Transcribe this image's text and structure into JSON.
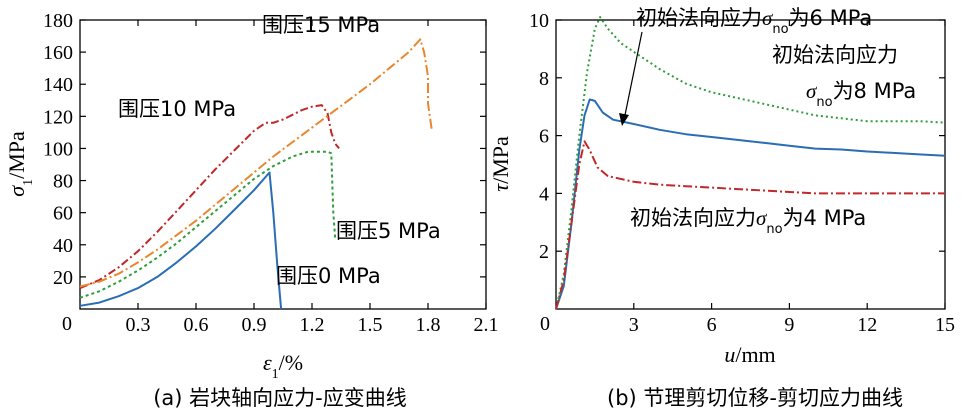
{
  "chart_data": [
    {
      "type": "line",
      "caption": "(a) 岩块轴向应力-应变曲线",
      "xlabel_symbol": "ε",
      "xlabel_sub": "1",
      "xlabel_unit": "/%",
      "ylabel_symbol": "σ",
      "ylabel_sub": "1",
      "ylabel_unit": "/MPa",
      "xlim": [
        0,
        2.1
      ],
      "ylim": [
        0,
        180
      ],
      "xticks": [
        0.3,
        0.6,
        0.9,
        1.2,
        1.5,
        1.8,
        2.1
      ],
      "xtick_labels": [
        "0.3",
        "0.6",
        "0.9",
        "1.2",
        "1.5",
        "1.8",
        "2.1"
      ],
      "yticks": [
        20,
        40,
        60,
        80,
        100,
        120,
        140,
        160,
        180
      ],
      "ytick_labels": [
        "20",
        "40",
        "60",
        "80",
        "100",
        "120",
        "140",
        "160",
        "180"
      ],
      "origin_label": "0",
      "series": [
        {
          "name": "围压0 MPa",
          "color": "#2a6db5",
          "dash": "",
          "points": [
            [
              0,
              2
            ],
            [
              0.1,
              4
            ],
            [
              0.2,
              8
            ],
            [
              0.3,
              13
            ],
            [
              0.4,
              20
            ],
            [
              0.5,
              29
            ],
            [
              0.6,
              39
            ],
            [
              0.7,
              50
            ],
            [
              0.8,
              62
            ],
            [
              0.9,
              74
            ],
            [
              0.98,
              85
            ],
            [
              1.0,
              60
            ],
            [
              1.02,
              28
            ],
            [
              1.04,
              0
            ]
          ]
        },
        {
          "name": "围压5 MPa",
          "color": "#2e9e3a",
          "dash": "3,3",
          "points": [
            [
              0,
              7
            ],
            [
              0.1,
              11
            ],
            [
              0.2,
              17
            ],
            [
              0.3,
              24
            ],
            [
              0.4,
              32
            ],
            [
              0.5,
              41
            ],
            [
              0.6,
              51
            ],
            [
              0.7,
              61
            ],
            [
              0.8,
              71
            ],
            [
              0.9,
              81
            ],
            [
              1.0,
              89
            ],
            [
              1.1,
              95
            ],
            [
              1.18,
              98
            ],
            [
              1.24,
              98
            ],
            [
              1.28,
              98
            ],
            [
              1.3,
              97
            ],
            [
              1.31,
              60
            ],
            [
              1.32,
              44
            ]
          ]
        },
        {
          "name": "围压10 MPa",
          "color": "#c0282a",
          "dash": "8,3,2,3",
          "points": [
            [
              0,
              13
            ],
            [
              0.1,
              18
            ],
            [
              0.2,
              26
            ],
            [
              0.3,
              36
            ],
            [
              0.4,
              48
            ],
            [
              0.5,
              61
            ],
            [
              0.6,
              74
            ],
            [
              0.7,
              87
            ],
            [
              0.8,
              99
            ],
            [
              0.9,
              111
            ],
            [
              0.96,
              116
            ],
            [
              1.0,
              116
            ],
            [
              1.05,
              118
            ],
            [
              1.1,
              121
            ],
            [
              1.15,
              124
            ],
            [
              1.2,
              126
            ],
            [
              1.25,
              127
            ],
            [
              1.28,
              122
            ],
            [
              1.3,
              110
            ],
            [
              1.32,
              103
            ],
            [
              1.34,
              100
            ]
          ]
        },
        {
          "name": "围压15 MPa",
          "color": "#e8872e",
          "dash": "10,3,2,3",
          "points": [
            [
              0,
              14
            ],
            [
              0.1,
              17
            ],
            [
              0.2,
              22
            ],
            [
              0.3,
              29
            ],
            [
              0.4,
              37
            ],
            [
              0.5,
              46
            ],
            [
              0.6,
              55
            ],
            [
              0.7,
              65
            ],
            [
              0.8,
              75
            ],
            [
              0.9,
              85
            ],
            [
              1.0,
              95
            ],
            [
              1.1,
              104
            ],
            [
              1.2,
              113
            ],
            [
              1.3,
              122
            ],
            [
              1.4,
              131
            ],
            [
              1.5,
              140
            ],
            [
              1.6,
              150
            ],
            [
              1.7,
              160
            ],
            [
              1.76,
              168
            ],
            [
              1.78,
              160
            ],
            [
              1.8,
              145
            ],
            [
              1.8,
              128
            ],
            [
              1.82,
              111
            ]
          ]
        }
      ],
      "annotations": [
        {
          "text": "围压15 MPa",
          "series": 3
        },
        {
          "text": "围压10 MPa",
          "series": 2
        },
        {
          "text": "围压5 MPa",
          "series": 1
        },
        {
          "text": "围压0 MPa",
          "series": 0
        }
      ]
    },
    {
      "type": "line",
      "caption": "(b) 节理剪切位移-剪切应力曲线",
      "xlabel_symbol": "u",
      "xlabel_unit": "/mm",
      "ylabel_symbol": "τ",
      "ylabel_unit": "/MPa",
      "xlim": [
        0,
        15
      ],
      "ylim": [
        0,
        10
      ],
      "xticks": [
        3,
        6,
        9,
        12,
        15
      ],
      "xtick_labels": [
        "3",
        "6",
        "9",
        "12",
        "15"
      ],
      "yticks": [
        2,
        4,
        6,
        8,
        10
      ],
      "ytick_labels": [
        "2",
        "4",
        "6",
        "8",
        "10"
      ],
      "origin_label": "0",
      "series": [
        {
          "name": "初始法向应力σno为6 MPa",
          "color": "#2a6db5",
          "dash": "",
          "points": [
            [
              0,
              0
            ],
            [
              0.3,
              0.8
            ],
            [
              0.6,
              3
            ],
            [
              0.9,
              5.5
            ],
            [
              1.1,
              6.7
            ],
            [
              1.3,
              7.25
            ],
            [
              1.5,
              7.2
            ],
            [
              1.8,
              6.8
            ],
            [
              2.2,
              6.55
            ],
            [
              3,
              6.4
            ],
            [
              4,
              6.2
            ],
            [
              5,
              6.05
            ],
            [
              6,
              5.95
            ],
            [
              7,
              5.85
            ],
            [
              8,
              5.75
            ],
            [
              9,
              5.65
            ],
            [
              10,
              5.55
            ],
            [
              11,
              5.52
            ],
            [
              12,
              5.45
            ],
            [
              13,
              5.4
            ],
            [
              14,
              5.35
            ],
            [
              15,
              5.3
            ]
          ]
        },
        {
          "name": "初始法向应力σno为8 MPa",
          "color": "#2e9e3a",
          "dash": "2,3",
          "points": [
            [
              0,
              0
            ],
            [
              0.3,
              1.2
            ],
            [
              0.6,
              3.5
            ],
            [
              0.9,
              6
            ],
            [
              1.2,
              8.2
            ],
            [
              1.5,
              9.7
            ],
            [
              1.7,
              10.1
            ],
            [
              2,
              9.7
            ],
            [
              2.5,
              9.2
            ],
            [
              3,
              8.9
            ],
            [
              3.5,
              8.6
            ],
            [
              4,
              8.3
            ],
            [
              5,
              7.8
            ],
            [
              6,
              7.5
            ],
            [
              7,
              7.3
            ],
            [
              8,
              7.1
            ],
            [
              9,
              6.9
            ],
            [
              10,
              6.7
            ],
            [
              11,
              6.6
            ],
            [
              12,
              6.5
            ],
            [
              13,
              6.5
            ],
            [
              14,
              6.5
            ],
            [
              15,
              6.45
            ]
          ]
        },
        {
          "name": "初始法向应力σno为4 MPa",
          "color": "#c0282a",
          "dash": "9,3,2,3",
          "points": [
            [
              0,
              0
            ],
            [
              0.3,
              1.0
            ],
            [
              0.6,
              3
            ],
            [
              0.9,
              5
            ],
            [
              1.1,
              5.8
            ],
            [
              1.3,
              5.5
            ],
            [
              1.6,
              4.9
            ],
            [
              2,
              4.6
            ],
            [
              3,
              4.4
            ],
            [
              4,
              4.3
            ],
            [
              5,
              4.25
            ],
            [
              6,
              4.2
            ],
            [
              7,
              4.15
            ],
            [
              8,
              4.1
            ],
            [
              9,
              4.05
            ],
            [
              10,
              4.0
            ],
            [
              12,
              4.0
            ],
            [
              14,
              4.0
            ],
            [
              15,
              4.0
            ]
          ]
        }
      ],
      "annotations": [
        {
          "text_pre": "初始法向应力",
          "symbol": "σ",
          "sub": "no",
          "text_post": "为6 MPa"
        },
        {
          "text_pre": "初始法向应力",
          "line2_symbol": "σ",
          "line2_sub": "no",
          "text_post": "为8 MPa"
        },
        {
          "text_pre": "初始法向应力",
          "symbol": "σ",
          "sub": "no",
          "text_post": "为4 MPa"
        }
      ]
    }
  ]
}
